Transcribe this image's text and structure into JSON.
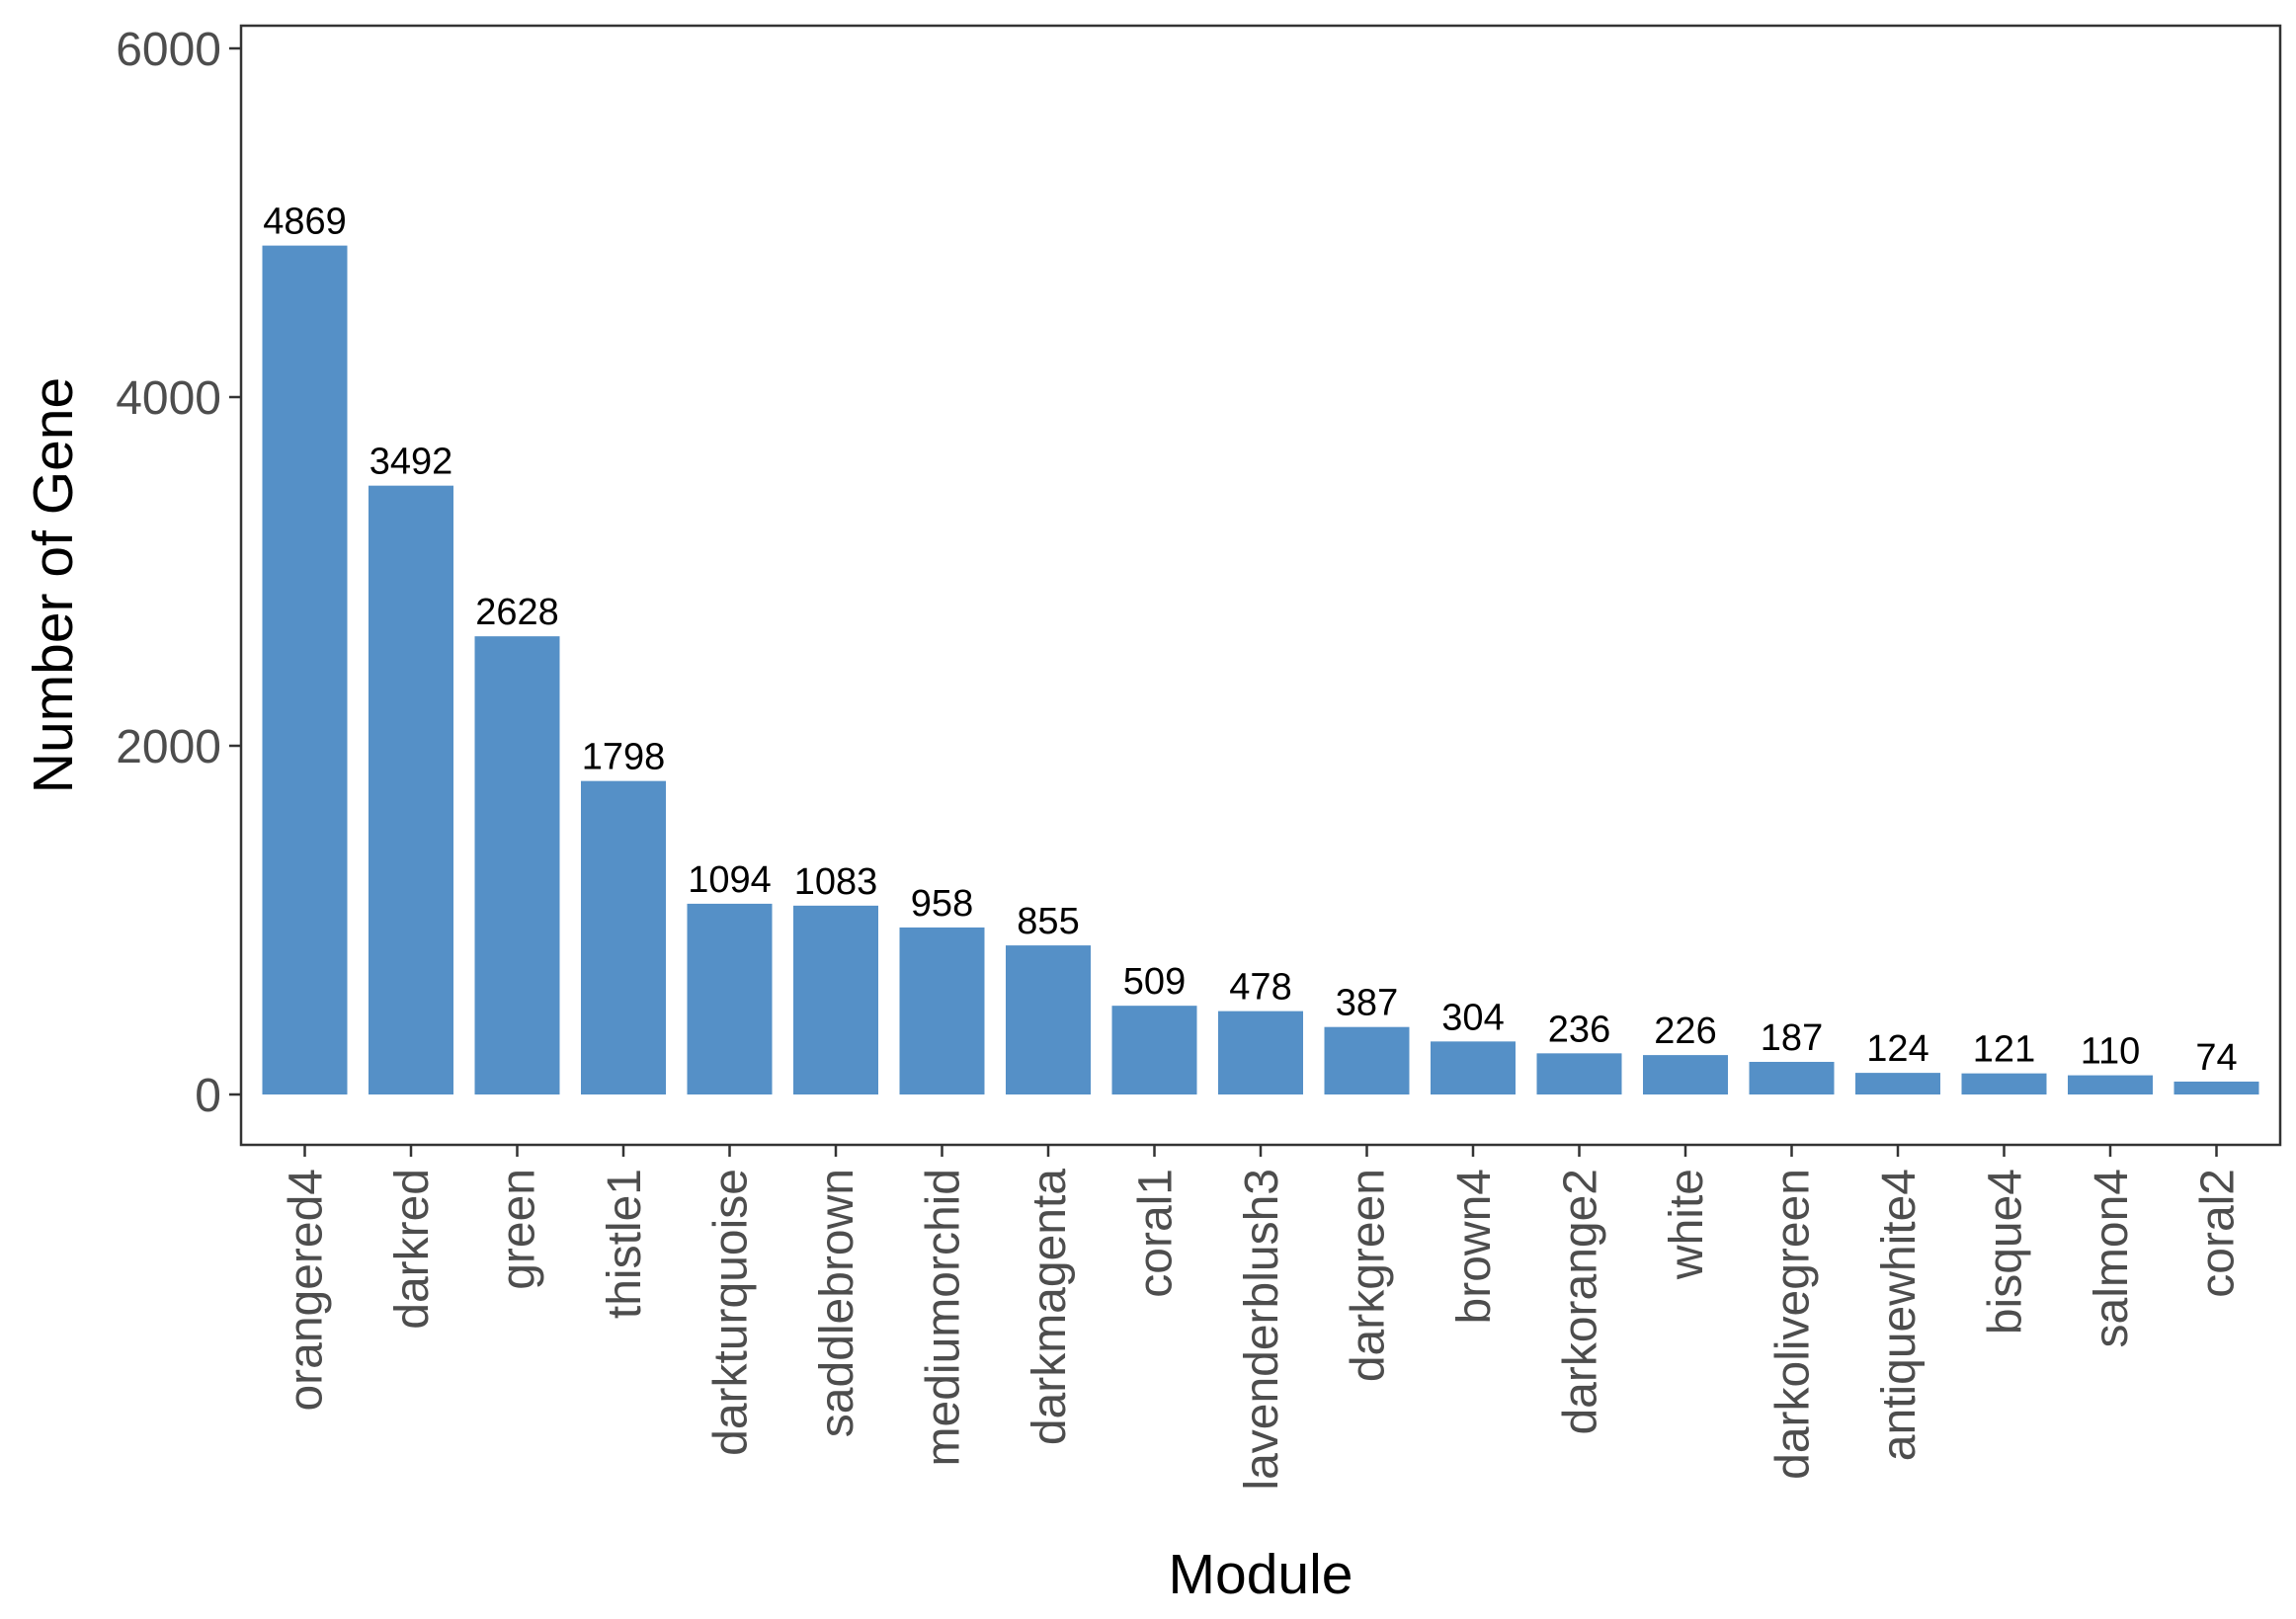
{
  "chart_data": {
    "type": "bar",
    "title": "",
    "xlabel": "Module",
    "ylabel": "Number of Gene",
    "categories": [
      "orangered4",
      "darkred",
      "green",
      "thistle1",
      "darkturquoise",
      "saddlebrown",
      "mediumorchid",
      "darkmagenta",
      "coral1",
      "lavenderblush3",
      "darkgreen",
      "brown4",
      "darkorange2",
      "white",
      "darkolivegreen",
      "antiquewhite4",
      "bisque4",
      "salmon4",
      "coral2"
    ],
    "values": [
      4869,
      3492,
      2628,
      1798,
      1094,
      1083,
      958,
      855,
      509,
      478,
      387,
      304,
      236,
      226,
      187,
      124,
      121,
      110,
      74
    ],
    "data_labels": [
      "4869",
      "3492",
      "2628",
      "1798",
      "1094",
      "1083",
      "958",
      "855",
      "509",
      "478",
      "387",
      "304",
      "236",
      "226",
      "187",
      "124",
      "121",
      "110",
      "74"
    ],
    "y_ticks": [
      0,
      2000,
      4000,
      6000
    ],
    "y_tick_labels": [
      "0",
      "2000",
      "4000",
      "6000"
    ],
    "ylim": [
      -270,
      6150
    ],
    "x_tick_rotation": "vertical",
    "grid": false,
    "legend": "none",
    "colors": {
      "bar": "#5590C7",
      "frame": "#333333",
      "tick_text": "#4D4D4D",
      "title_text": "#000000"
    }
  }
}
